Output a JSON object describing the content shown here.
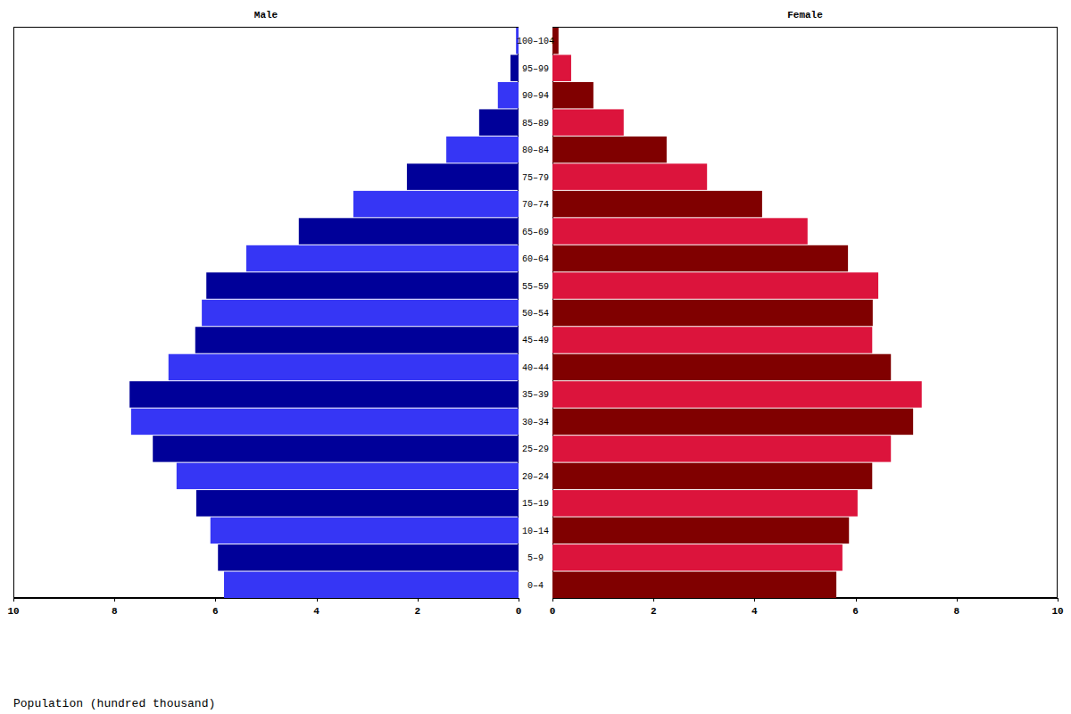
{
  "chart_data": {
    "type": "bar",
    "orientation": "horizontal",
    "categories": [
      "0–4",
      "5–9",
      "10–14",
      "15–19",
      "20–24",
      "25–29",
      "30–34",
      "35–39",
      "40–44",
      "45–49",
      "50–54",
      "55–59",
      "60–64",
      "65–69",
      "70–74",
      "75–79",
      "80–84",
      "85–89",
      "90–94",
      "95–99",
      "100–104"
    ],
    "series": [
      {
        "name": "Male",
        "colors": [
          "#3636f5",
          "#000099",
          "#3636f5",
          "#000099",
          "#3636f5",
          "#000099",
          "#3636f5",
          "#000099",
          "#3636f5",
          "#000099",
          "#3636f5",
          "#000099",
          "#3636f5",
          "#000099",
          "#3636f5",
          "#000099",
          "#3636f5",
          "#000099",
          "#3636f5",
          "#000099",
          "#3636f5"
        ],
        "values": [
          5.83,
          5.95,
          6.1,
          6.38,
          6.77,
          7.24,
          7.67,
          7.7,
          6.93,
          6.4,
          6.27,
          6.18,
          5.39,
          4.35,
          3.27,
          2.21,
          1.43,
          0.78,
          0.41,
          0.16,
          0.05
        ]
      },
      {
        "name": "Female",
        "colors": [
          "#800000",
          "#dc143c",
          "#800000",
          "#dc143c",
          "#800000",
          "#dc143c",
          "#800000",
          "#dc143c",
          "#800000",
          "#dc143c",
          "#800000",
          "#dc143c",
          "#800000",
          "#dc143c",
          "#800000",
          "#dc143c",
          "#800000",
          "#dc143c",
          "#800000",
          "#dc143c",
          "#800000"
        ],
        "values": [
          5.62,
          5.74,
          5.87,
          6.04,
          6.33,
          6.7,
          7.14,
          7.31,
          6.7,
          6.33,
          6.34,
          6.45,
          5.85,
          5.05,
          4.15,
          3.06,
          2.26,
          1.41,
          0.81,
          0.37,
          0.12
        ]
      }
    ],
    "xlim": [
      0,
      10
    ],
    "xticks": [
      0,
      2,
      4,
      6,
      8,
      10
    ],
    "xlabel": "Population (hundred thousand)",
    "grid": false
  }
}
